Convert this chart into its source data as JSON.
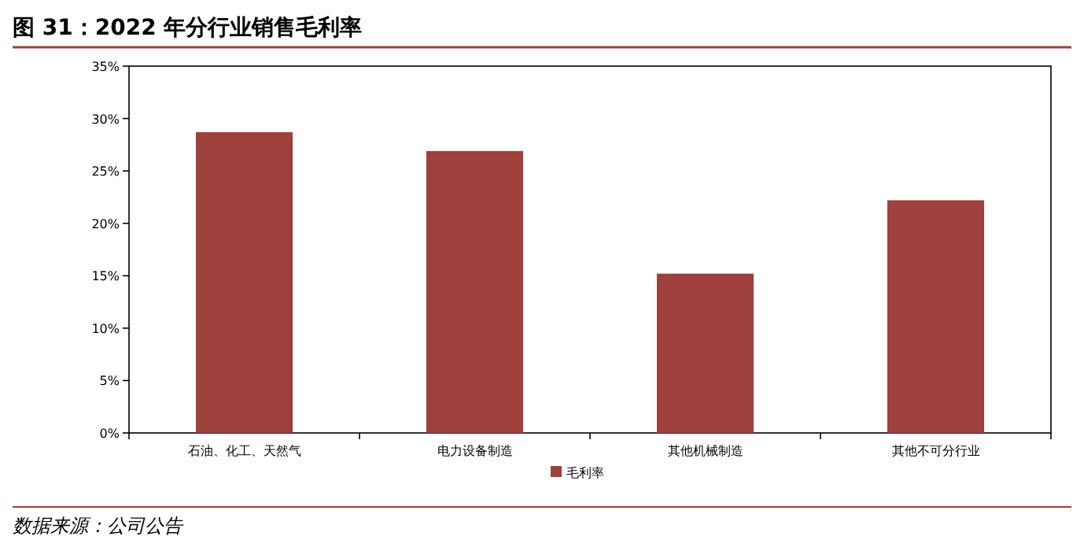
{
  "chart_data": {
    "type": "bar",
    "title": "图 31：2022 年分行业销售毛利率",
    "categories": [
      "石油、化工、天然气",
      "电力设备制造",
      "其他机械制造",
      "其他不可分行业"
    ],
    "series": [
      {
        "name": "毛利率",
        "color": "#9e403c",
        "values": [
          28.7,
          26.9,
          15.2,
          22.2
        ]
      }
    ],
    "ylim": [
      0,
      35
    ],
    "yticks": [
      {
        "value": 0,
        "label": "0%"
      },
      {
        "value": 5,
        "label": "5%"
      },
      {
        "value": 10,
        "label": "10%"
      },
      {
        "value": 15,
        "label": "15%"
      },
      {
        "value": 20,
        "label": "20%"
      },
      {
        "value": 25,
        "label": "25%"
      },
      {
        "value": 30,
        "label": "30%"
      },
      {
        "value": 35,
        "label": "35%"
      }
    ],
    "grid": false,
    "legend": "bottom",
    "annotations": [
      "数据来源：公司公告"
    ]
  }
}
